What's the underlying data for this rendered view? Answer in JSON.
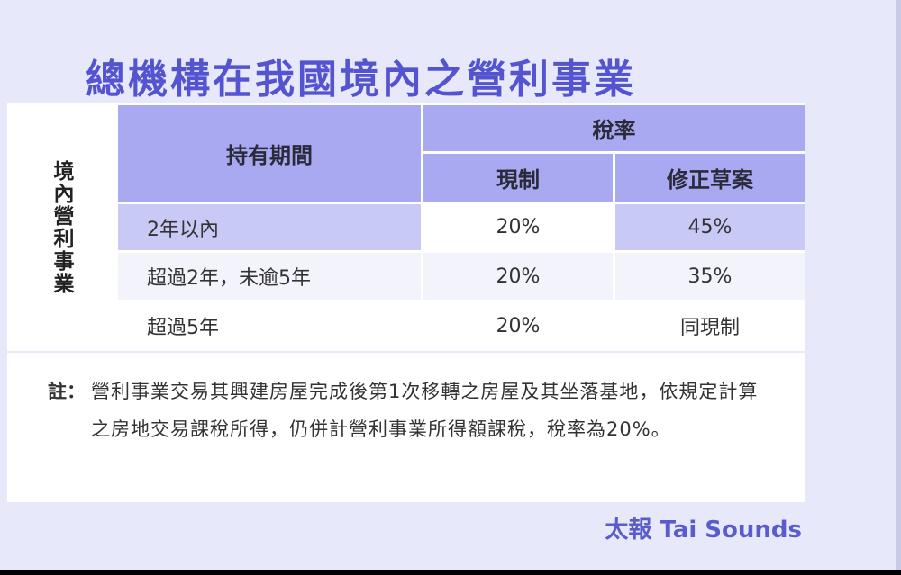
{
  "title": "總機構在我國境內之營利事業",
  "side_label": "境內營利事業",
  "table": {
    "header_period": "持有期間",
    "header_rate": "稅率",
    "header_current": "現制",
    "header_draft": "修正草案",
    "rows": [
      {
        "period": "2年以內",
        "current": "20%",
        "draft": "45%"
      },
      {
        "period": "超過2年，未逾5年",
        "current": "20%",
        "draft": "35%"
      },
      {
        "period": "超過5年",
        "current": "20%",
        "draft": "同現制"
      }
    ]
  },
  "note": {
    "label": "註：",
    "text": "營利事業交易其興建房屋完成後第1次移轉之房屋及其坐落基地，依規定計算之房地交易課稅所得，仍併計營利事業所得額課稅，稅率為20%。"
  },
  "credit": "太報 Tai Sounds",
  "colors": {
    "accent": "#5454d0",
    "header": "#a9a9f1",
    "highlight": "#c9c9f5",
    "background": "#e7e9fa"
  }
}
